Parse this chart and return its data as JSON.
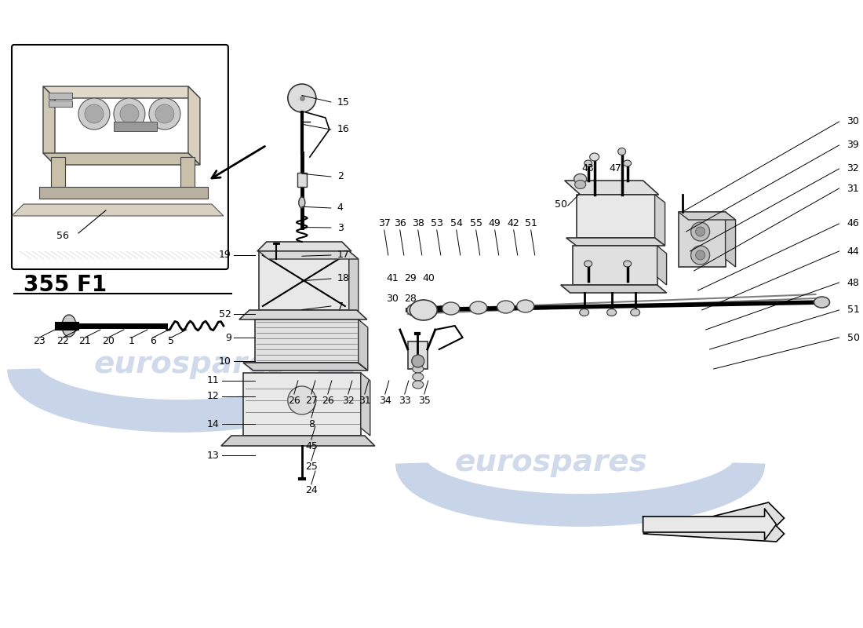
{
  "bg_color": "#ffffff",
  "wm_color": "#c8d4e8",
  "title": "355 F1",
  "fig_w": 11.0,
  "fig_h": 8.0,
  "dpi": 100
}
